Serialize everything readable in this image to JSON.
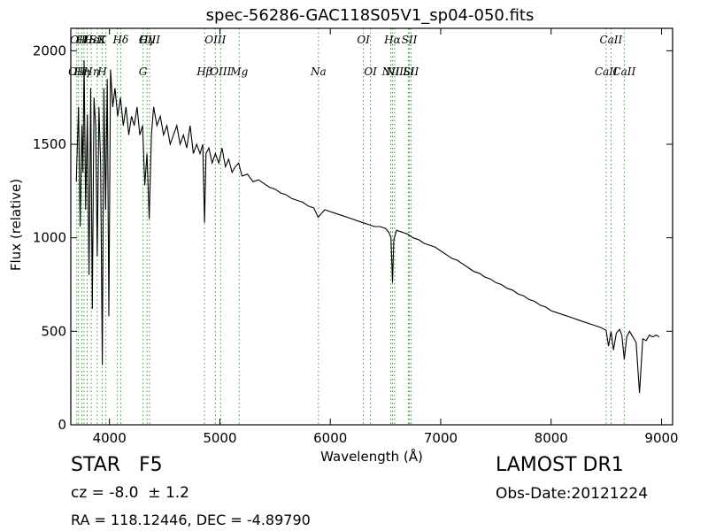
{
  "chart_data": {
    "type": "line",
    "title": "spec-56286-GAC118S05V1_sp04-050.fits",
    "xlabel": "Wavelength (Å)",
    "ylabel": "Flux (relative)",
    "xlim": [
      3650,
      9100
    ],
    "ylim": [
      0,
      2120
    ],
    "xticks": [
      4000,
      5000,
      6000,
      7000,
      8000,
      9000
    ],
    "yticks": [
      0,
      500,
      1000,
      1500,
      2000
    ],
    "grid": false,
    "line_color": "#000000",
    "marker_color": "#2ca02c",
    "series": [
      {
        "x": [
          3700,
          3720,
          3735,
          3750,
          3760,
          3770,
          3785,
          3800,
          3815,
          3830,
          3845,
          3860,
          3875,
          3890,
          3905,
          3920,
          3935,
          3950,
          3965,
          3980,
          3995,
          4010,
          4030,
          4050,
          4075,
          4100,
          4125,
          4150,
          4175,
          4200,
          4225,
          4250,
          4275,
          4300,
          4320,
          4340,
          4360,
          4380,
          4400,
          4430,
          4460,
          4490,
          4520,
          4550,
          4580,
          4610,
          4640,
          4670,
          4700,
          4730,
          4760,
          4790,
          4820,
          4845,
          4861,
          4875,
          4900,
          4930,
          4960,
          4990,
          5020,
          5050,
          5080,
          5110,
          5140,
          5170,
          5200,
          5250,
          5300,
          5350,
          5400,
          5450,
          5500,
          5550,
          5600,
          5650,
          5700,
          5750,
          5800,
          5850,
          5890,
          5950,
          6000,
          6050,
          6100,
          6150,
          6200,
          6250,
          6300,
          6350,
          6400,
          6450,
          6500,
          6530,
          6550,
          6563,
          6575,
          6600,
          6650,
          6700,
          6750,
          6800,
          6850,
          6900,
          6950,
          7000,
          7050,
          7100,
          7150,
          7200,
          7250,
          7300,
          7350,
          7400,
          7450,
          7500,
          7550,
          7600,
          7650,
          7700,
          7750,
          7800,
          7850,
          7900,
          7950,
          8000,
          8050,
          8100,
          8150,
          8200,
          8250,
          8300,
          8350,
          8400,
          8450,
          8498,
          8520,
          8542,
          8565,
          8590,
          8620,
          8640,
          8662,
          8685,
          8710,
          8740,
          8770,
          8800,
          8830,
          8860,
          8890,
          8920,
          8950,
          8980
        ],
        "y": [
          1300,
          1700,
          1060,
          1600,
          1350,
          1950,
          1150,
          1660,
          800,
          1800,
          620,
          1750,
          1600,
          900,
          1700,
          1400,
          320,
          1800,
          1150,
          1850,
          580,
          1900,
          1700,
          1800,
          1650,
          1750,
          1600,
          1700,
          1550,
          1650,
          1600,
          1700,
          1550,
          1600,
          1280,
          1450,
          1100,
          1550,
          1700,
          1600,
          1650,
          1550,
          1600,
          1500,
          1550,
          1600,
          1500,
          1550,
          1480,
          1600,
          1450,
          1500,
          1450,
          1500,
          1080,
          1450,
          1480,
          1400,
          1450,
          1400,
          1480,
          1380,
          1420,
          1350,
          1380,
          1400,
          1330,
          1340,
          1300,
          1310,
          1290,
          1270,
          1260,
          1240,
          1230,
          1210,
          1200,
          1190,
          1170,
          1160,
          1110,
          1150,
          1140,
          1130,
          1120,
          1110,
          1100,
          1090,
          1080,
          1070,
          1060,
          1060,
          1050,
          1030,
          1000,
          760,
          990,
          1040,
          1030,
          1020,
          1000,
          990,
          970,
          960,
          950,
          930,
          910,
          890,
          880,
          860,
          840,
          820,
          810,
          790,
          780,
          760,
          750,
          730,
          720,
          700,
          690,
          670,
          660,
          640,
          630,
          610,
          600,
          590,
          580,
          570,
          560,
          550,
          540,
          530,
          520,
          505,
          420,
          500,
          400,
          490,
          510,
          480,
          350,
          470,
          500,
          470,
          440,
          170,
          460,
          450,
          480,
          470,
          480,
          470
        ]
      }
    ],
    "line_markers": [
      {
        "x": 3704,
        "top": "",
        "bottom": "OII"
      },
      {
        "x": 3720,
        "top": "OII",
        "bottom": ""
      },
      {
        "x": 3750,
        "top": "",
        "bottom": "Hη"
      },
      {
        "x": 3770,
        "top": "Hθ",
        "bottom": ""
      },
      {
        "x": 3798,
        "top": "",
        "bottom": ""
      },
      {
        "x": 3835,
        "top": "Hε",
        "bottom": "Hη"
      },
      {
        "x": 3889,
        "top": "SII",
        "bottom": ""
      },
      {
        "x": 3934,
        "top": "K",
        "bottom": "H"
      },
      {
        "x": 3968,
        "top": "",
        "bottom": ""
      },
      {
        "x": 4072,
        "top": "",
        "bottom": ""
      },
      {
        "x": 4102,
        "top": "Hδ",
        "bottom": ""
      },
      {
        "x": 4304,
        "top": "",
        "bottom": "G"
      },
      {
        "x": 4340,
        "top": "Hγ",
        "bottom": ""
      },
      {
        "x": 4363,
        "top": "OIII",
        "bottom": ""
      },
      {
        "x": 4861,
        "top": "",
        "bottom": "Hβ"
      },
      {
        "x": 4959,
        "top": "OIII",
        "bottom": ""
      },
      {
        "x": 5007,
        "top": "",
        "bottom": "OIII"
      },
      {
        "x": 5175,
        "top": "",
        "bottom": "Mg"
      },
      {
        "x": 5893,
        "top": "",
        "bottom": "Na"
      },
      {
        "x": 6300,
        "top": "OI",
        "bottom": ""
      },
      {
        "x": 6364,
        "top": "",
        "bottom": "OI"
      },
      {
        "x": 6548,
        "top": "",
        "bottom": "NII"
      },
      {
        "x": 6563,
        "top": "Hα",
        "bottom": ""
      },
      {
        "x": 6583,
        "top": "",
        "bottom": "NII"
      },
      {
        "x": 6707,
        "top": "",
        "bottom": "Li"
      },
      {
        "x": 6716,
        "top": "SII",
        "bottom": ""
      },
      {
        "x": 6731,
        "top": "",
        "bottom": "SII"
      },
      {
        "x": 8498,
        "top": "",
        "bottom": "CaII"
      },
      {
        "x": 8542,
        "top": "CaII",
        "bottom": ""
      },
      {
        "x": 8662,
        "top": "",
        "bottom": "CaII"
      }
    ]
  },
  "info": {
    "class_line": "STAR   F5",
    "survey": "LAMOST DR1",
    "redshift": "cz = -8.0  ± 1.2",
    "obs_date": "Obs-Date:20121224",
    "coords": "RA = 118.12446, DEC = -4.89790"
  }
}
